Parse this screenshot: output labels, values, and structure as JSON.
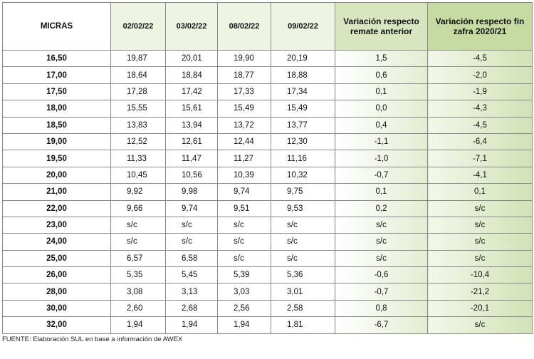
{
  "table": {
    "header": [
      "MICRAS",
      "02/02/22",
      "03/02/22",
      "08/02/22",
      "09/02/22",
      "Variación respecto remate anterior",
      "Variación respecto fin zafra 2020/21"
    ],
    "rows": [
      [
        "16,50",
        "19,87",
        "20,01",
        "19,90",
        "20,19",
        "1,5",
        "-4,5"
      ],
      [
        "17,00",
        "18,64",
        "18,84",
        "18,77",
        "18,88",
        "0,6",
        "-2,0"
      ],
      [
        "17,50",
        "17,28",
        "17,42",
        "17,33",
        "17,34",
        "0,1",
        "-1,9"
      ],
      [
        "18,00",
        "15,55",
        "15,61",
        "15,49",
        "15,49",
        "0,0",
        "-4,3"
      ],
      [
        "18,50",
        "13,83",
        "13,94",
        "13,72",
        "13,77",
        "0,4",
        "-4,5"
      ],
      [
        "19,00",
        "12,52",
        "12,61",
        "12,44",
        "12,30",
        "-1,1",
        "-6,4"
      ],
      [
        "19,50",
        "11,33",
        "11,47",
        "11,27",
        "11,16",
        "-1,0",
        "-7,1"
      ],
      [
        "20,00",
        "10,45",
        "10,56",
        "10,39",
        "10,32",
        "-0,7",
        "-4,1"
      ],
      [
        "21,00",
        "9,92",
        "9,98",
        "9,74",
        "9,75",
        "0,1",
        "0,1"
      ],
      [
        "22,00",
        "9,66",
        "9,74",
        "9,51",
        "9,53",
        "0,2",
        "s/c"
      ],
      [
        "23,00",
        "s/c",
        "s/c",
        "s/c",
        "s/c",
        "s/c",
        "s/c"
      ],
      [
        "24,00",
        "s/c",
        "s/c",
        "s/c",
        "s/c",
        "s/c",
        "s/c"
      ],
      [
        "25,00",
        "6,57",
        "6,58",
        "s/c",
        "s/c",
        "s/c",
        "s/c"
      ],
      [
        "26,00",
        "5,35",
        "5,45",
        "5,39",
        "5,36",
        "-0,6",
        "-10,4"
      ],
      [
        "28,00",
        "3,08",
        "3,13",
        "3,03",
        "3,01",
        "-0,7",
        "-21,2"
      ],
      [
        "30,00",
        "2,60",
        "2,68",
        "2,56",
        "2,58",
        "0,8",
        "-20,1"
      ],
      [
        "32,00",
        "1,94",
        "1,94",
        "1,94",
        "1,81",
        "-6,7",
        "s/c"
      ]
    ]
  },
  "footer": "FUENTE: Elaboración SUL en base a información de AWEX"
}
